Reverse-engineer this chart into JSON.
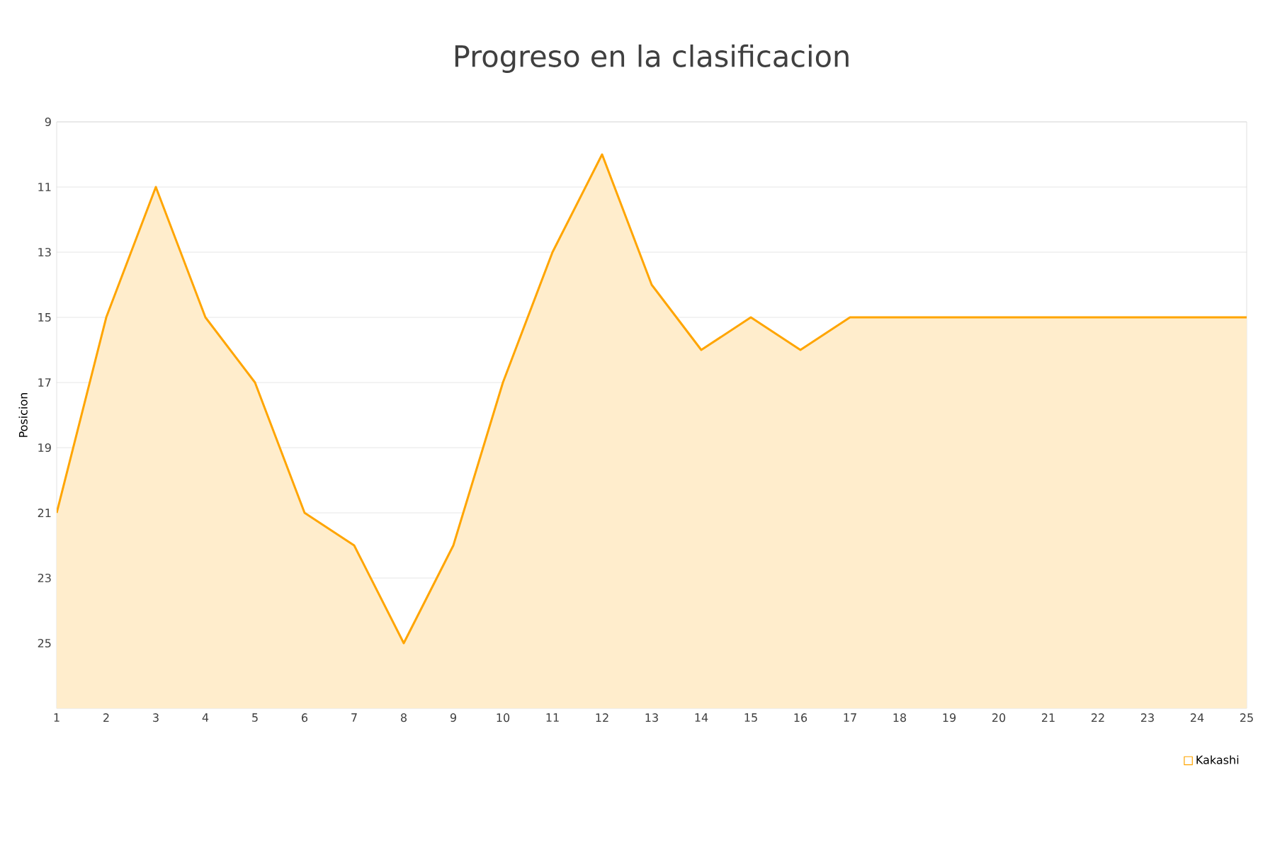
{
  "chart_data": {
    "type": "area",
    "title": "Progreso en la clasificacion",
    "ylabel": "Posicion",
    "x": [
      1,
      2,
      3,
      4,
      5,
      6,
      7,
      8,
      9,
      10,
      11,
      12,
      13,
      14,
      15,
      16,
      17,
      18,
      19,
      20,
      21,
      22,
      23,
      24,
      25
    ],
    "series": [
      {
        "name": "Kakashi",
        "color": "#ffa500",
        "values": [
          21,
          15,
          11,
          15,
          17,
          21,
          22,
          25,
          22,
          17,
          13,
          10,
          14,
          16,
          15,
          16,
          15,
          15,
          15,
          15,
          15,
          15,
          15,
          15,
          15
        ]
      }
    ],
    "xlim": [
      1,
      25
    ],
    "xticks": [
      1,
      2,
      3,
      4,
      5,
      6,
      7,
      8,
      9,
      10,
      11,
      12,
      13,
      14,
      15,
      16,
      17,
      18,
      19,
      20,
      21,
      22,
      23,
      24,
      25
    ],
    "ylim": [
      27,
      9
    ],
    "yticks": [
      9,
      11,
      13,
      15,
      17,
      19,
      21,
      23,
      25
    ],
    "grid": "y",
    "legend": "bottom right"
  }
}
